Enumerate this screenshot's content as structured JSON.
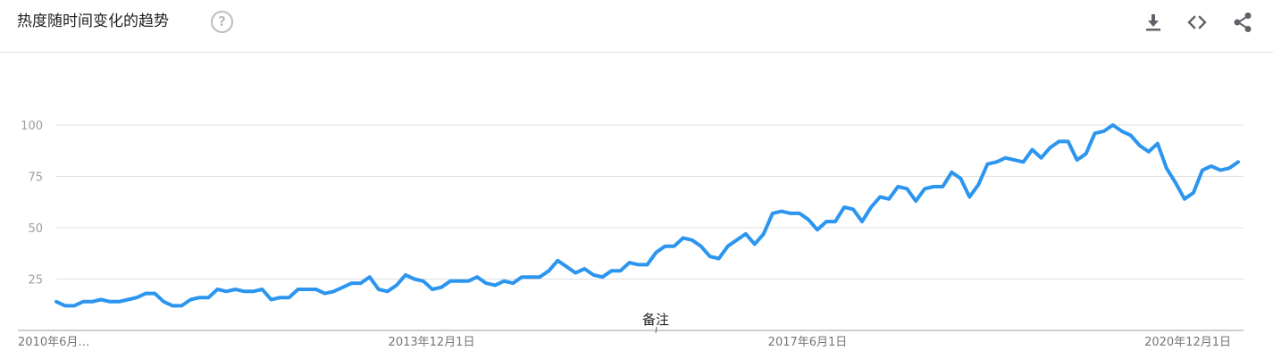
{
  "header": {
    "title": "热度随时间变化的趋势",
    "help_icon": "help-circle-icon",
    "tools": [
      "download-icon",
      "embed-code-icon",
      "share-icon"
    ]
  },
  "chart_data": {
    "type": "line",
    "title": "热度随时间变化的趋势",
    "y_ticks": [
      "100",
      "75",
      "50",
      "25"
    ],
    "ylim": [
      0,
      100
    ],
    "x_tick_labels": [
      "2010年6月…",
      "2013年12月1日",
      "2017年6月1日",
      "2020年12月1日"
    ],
    "annotation": "备注",
    "grid": true,
    "line_color": "#2b95ef",
    "series": [
      {
        "values": [
          14,
          12,
          12,
          14,
          14,
          15,
          14,
          14,
          15,
          16,
          18,
          18,
          14,
          12,
          12,
          15,
          16,
          16,
          20,
          19,
          20,
          19,
          19,
          20,
          15,
          16,
          16,
          20,
          20,
          20,
          18,
          19,
          21,
          23,
          23,
          26,
          20,
          19,
          22,
          27,
          25,
          24,
          20,
          21,
          24,
          24,
          24,
          26,
          23,
          22,
          24,
          23,
          26,
          26,
          26,
          29,
          34,
          31,
          28,
          30,
          27,
          26,
          29,
          29,
          33,
          32,
          32,
          38,
          41,
          41,
          45,
          44,
          41,
          36,
          35,
          41,
          44,
          47,
          42,
          47,
          57,
          58,
          57,
          57,
          54,
          49,
          53,
          53,
          60,
          59,
          53,
          60,
          65,
          64,
          70,
          69,
          63,
          69,
          70,
          70,
          77,
          74,
          65,
          71,
          81,
          82,
          84,
          83,
          82,
          88,
          84,
          89,
          92,
          92,
          83,
          86,
          96,
          97,
          100,
          97,
          95,
          90,
          87,
          91,
          79,
          72,
          64,
          67,
          78,
          80,
          78,
          79,
          82
        ]
      }
    ]
  }
}
